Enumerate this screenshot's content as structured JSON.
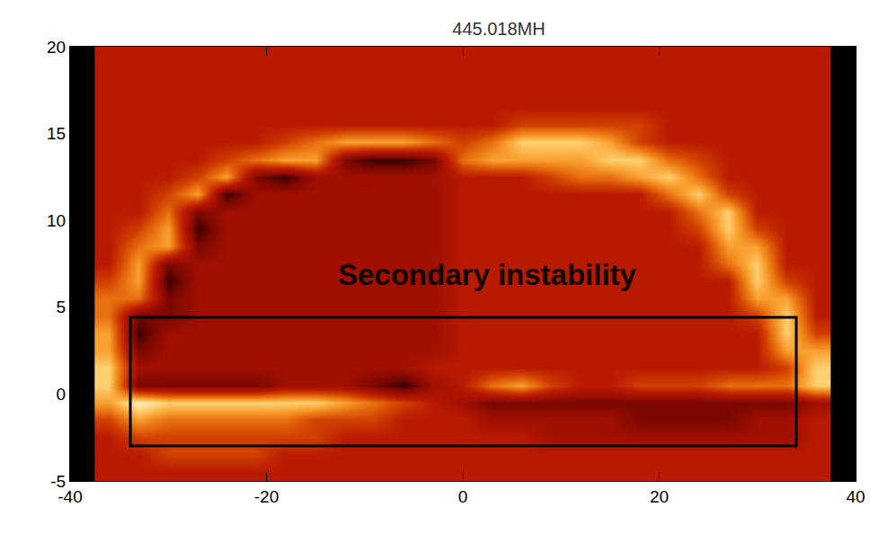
{
  "chart_data": {
    "type": "heatmap",
    "title": "445.018MH",
    "annotation": "Secondary instability",
    "x": [
      -36,
      -33,
      -30,
      -27,
      -24,
      -21,
      -18,
      -15,
      -12,
      -9,
      -6,
      -3,
      0,
      3,
      6,
      9,
      12,
      15,
      18,
      21,
      24,
      27,
      30,
      33,
      36
    ],
    "y": [
      19.5,
      18.5,
      17.5,
      16.5,
      15.5,
      14.5,
      13.5,
      12.5,
      11.5,
      10.5,
      9.5,
      8.5,
      7.5,
      6.5,
      5.5,
      4.5,
      3.5,
      2.5,
      1.5,
      0.5,
      -0.5,
      -1.5,
      -2.5,
      -3.5,
      -4.5
    ],
    "z": [
      [
        4,
        4,
        4,
        4,
        4,
        4,
        4,
        4,
        4,
        4,
        4,
        4,
        4,
        4,
        4,
        4,
        4,
        4,
        4,
        4,
        4,
        4,
        4,
        4,
        4
      ],
      [
        4,
        4,
        4,
        4,
        4,
        4,
        4,
        4,
        4,
        4,
        4,
        4,
        4,
        4,
        4,
        4,
        4,
        4,
        4,
        4,
        4,
        4,
        4,
        4,
        4
      ],
      [
        4,
        4,
        4,
        4,
        4,
        4,
        4,
        4,
        4,
        4,
        4,
        4,
        4,
        4,
        4,
        4,
        4,
        4,
        4,
        4,
        4,
        4,
        4,
        4,
        4
      ],
      [
        4,
        4,
        4,
        4,
        4,
        4,
        4,
        4,
        4,
        4,
        4,
        4,
        4,
        4,
        4,
        4,
        4,
        4,
        4,
        4,
        4,
        4,
        4,
        4,
        4
      ],
      [
        4,
        4,
        4,
        4,
        4,
        4,
        4,
        4,
        4,
        4,
        4,
        4,
        4,
        4,
        5,
        5,
        5,
        5,
        5,
        4,
        4,
        4,
        4,
        4,
        4
      ],
      [
        4,
        4,
        4,
        4,
        4,
        4,
        5,
        6,
        7,
        7,
        7,
        6,
        5,
        6,
        8,
        8,
        8,
        7,
        5,
        4,
        4,
        4,
        4,
        4,
        4
      ],
      [
        4,
        4,
        4,
        4,
        5,
        6,
        7,
        7,
        2,
        1,
        1,
        2,
        6,
        7,
        7,
        7,
        7,
        8,
        8,
        6,
        5,
        4,
        4,
        4,
        4
      ],
      [
        4,
        4,
        4,
        5,
        7,
        2,
        1,
        3,
        3,
        3,
        3,
        3,
        4,
        4,
        4,
        5,
        6,
        6,
        7,
        8,
        6,
        4,
        4,
        4,
        4
      ],
      [
        4,
        4,
        5,
        7,
        1,
        3,
        3,
        3,
        3,
        3,
        3,
        3,
        4,
        4,
        4,
        4,
        4,
        4,
        4,
        6,
        8,
        5,
        4,
        4,
        4
      ],
      [
        4,
        4,
        6,
        2,
        3,
        3,
        3,
        3,
        3,
        3,
        3,
        3,
        4,
        4,
        4,
        4,
        4,
        4,
        4,
        4,
        6,
        8,
        4,
        4,
        4
      ],
      [
        4,
        5,
        7,
        1,
        3,
        3,
        3,
        3,
        3,
        3,
        3,
        3,
        4,
        4,
        4,
        4,
        4,
        4,
        4,
        4,
        5,
        8,
        5,
        4,
        4
      ],
      [
        4,
        6,
        7,
        2,
        3,
        3,
        3,
        3,
        3,
        3,
        3,
        3,
        4,
        4,
        4,
        4,
        4,
        4,
        4,
        4,
        4,
        7,
        7,
        4,
        4
      ],
      [
        4,
        7,
        2,
        3,
        3,
        3,
        3,
        3,
        3,
        3,
        3,
        3,
        4,
        4,
        4,
        4,
        4,
        4,
        4,
        4,
        4,
        6,
        8,
        4,
        4
      ],
      [
        5,
        7,
        1,
        3,
        3,
        3,
        3,
        3,
        3,
        3,
        3,
        3,
        4,
        4,
        4,
        4,
        4,
        4,
        4,
        4,
        4,
        4,
        8,
        5,
        4
      ],
      [
        6,
        6,
        2,
        3,
        3,
        3,
        3,
        3,
        3,
        3,
        3,
        3,
        4,
        4,
        4,
        4,
        4,
        4,
        4,
        4,
        4,
        4,
        7,
        7,
        4
      ],
      [
        6,
        2,
        2,
        3,
        3,
        3,
        3,
        3,
        3,
        3,
        3,
        3,
        4,
        4,
        4,
        4,
        4,
        4,
        4,
        4,
        4,
        4,
        5,
        8,
        4
      ],
      [
        7,
        1,
        3,
        3,
        3,
        3,
        3,
        3,
        3,
        3,
        3,
        3,
        4,
        4,
        4,
        4,
        4,
        4,
        4,
        4,
        4,
        4,
        4,
        8,
        5
      ],
      [
        7,
        2,
        3,
        3,
        3,
        3,
        3,
        3,
        3,
        3,
        3,
        3,
        4,
        4,
        4,
        4,
        4,
        4,
        4,
        4,
        4,
        4,
        4,
        7,
        7
      ],
      [
        8,
        3,
        3,
        3,
        3,
        3,
        3,
        3,
        3,
        3,
        3,
        4,
        4,
        4,
        4,
        4,
        4,
        4,
        4,
        4,
        4,
        4,
        4,
        5,
        8
      ],
      [
        8,
        2,
        2,
        2,
        2,
        2,
        3,
        3,
        3,
        2,
        1,
        3,
        4,
        6,
        7,
        5,
        4,
        4,
        5,
        5,
        5,
        6,
        6,
        6,
        8
      ],
      [
        7,
        9,
        8,
        8,
        8,
        8,
        8,
        8,
        7,
        6,
        5,
        4,
        3,
        2,
        2,
        2,
        2,
        2,
        2,
        2,
        2,
        2,
        2,
        2,
        3
      ],
      [
        5,
        7,
        6,
        6,
        6,
        6,
        6,
        5,
        5,
        5,
        4,
        4,
        4,
        3,
        3,
        3,
        3,
        3,
        2,
        2,
        2,
        2,
        3,
        3,
        4
      ],
      [
        4,
        5,
        5,
        5,
        5,
        5,
        5,
        5,
        4,
        4,
        4,
        4,
        4,
        4,
        4,
        3,
        3,
        3,
        3,
        3,
        3,
        3,
        3,
        3,
        4
      ],
      [
        4,
        4,
        5,
        5,
        5,
        5,
        4,
        4,
        4,
        4,
        4,
        4,
        4,
        4,
        4,
        4,
        4,
        4,
        4,
        4,
        4,
        4,
        4,
        4,
        4
      ],
      [
        4,
        4,
        4,
        4,
        4,
        4,
        4,
        4,
        4,
        4,
        4,
        4,
        4,
        4,
        4,
        4,
        4,
        4,
        4,
        4,
        4,
        4,
        4,
        4,
        4
      ]
    ],
    "zlim": [
      0,
      9
    ],
    "xlim": [
      -40,
      40
    ],
    "ylim": [
      -5,
      20
    ],
    "xticks": [
      -40,
      -20,
      0,
      20,
      40
    ],
    "yticks": [
      -5,
      0,
      5,
      10,
      15,
      20
    ],
    "grid": false
  }
}
